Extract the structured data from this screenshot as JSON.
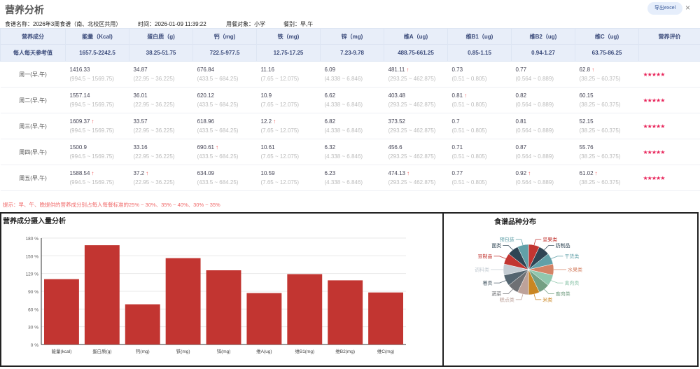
{
  "header": {
    "title": "营养分析",
    "export_label": "导出excel",
    "close_icon": "×"
  },
  "info": {
    "recipe": "食谱名称：2026年3周食谱（南、北校区共用）",
    "time": "时间：2026-01-09 11:39:22",
    "target": "用餐对象：小学",
    "meal": "餐别：早,午"
  },
  "table": {
    "columns": [
      "营养成分",
      "能量（Kcal)",
      "蛋白质（g)",
      "钙（mg)",
      "铁（mg)",
      "锌（mg)",
      "维A（ug)",
      "维B1（ug)",
      "维B2（ug)",
      "维C（ug)",
      "营养评价"
    ],
    "ref_label": "每人每天参考值",
    "ref": [
      "1657.5-2242.5",
      "38.25-51.75",
      "722.5-977.5",
      "12.75-17.25",
      "7.23-9.78",
      "488.75-661.25",
      "0.85-1.15",
      "0.94-1.27",
      "63.75-86.25"
    ],
    "ranges": [
      "(994.5 ~ 1569.75)",
      "(22.95 ~ 36.225)",
      "(433.5 ~ 684.25)",
      "(7.65 ~ 12.075)",
      "(4.338 ~ 6.846)",
      "(293.25 ~ 462.875)",
      "(0.51 ~ 0.805)",
      "(0.564 ~ 0.889)",
      "(38.25 ~ 60.375)"
    ],
    "rows": [
      {
        "day": "周一(早,午)",
        "values": [
          "1416.33",
          "34.87",
          "676.84",
          "11.16",
          "6.09",
          "481.11",
          "0.73",
          "0.77",
          "62.8"
        ],
        "over": [
          false,
          false,
          false,
          false,
          false,
          true,
          false,
          false,
          true
        ],
        "rating": "★★★★★"
      },
      {
        "day": "周二(早,午)",
        "values": [
          "1557.14",
          "36.01",
          "620.12",
          "10.9",
          "6.62",
          "403.48",
          "0.81",
          "0.82",
          "60.15"
        ],
        "over": [
          false,
          false,
          false,
          false,
          false,
          false,
          true,
          false,
          false
        ],
        "rating": "★★★★★"
      },
      {
        "day": "周三(早,午)",
        "values": [
          "1609.37",
          "33.57",
          "618.96",
          "12.2",
          "6.82",
          "373.52",
          "0.7",
          "0.81",
          "52.15"
        ],
        "over": [
          true,
          false,
          false,
          true,
          false,
          false,
          false,
          false,
          false
        ],
        "rating": "★★★★★"
      },
      {
        "day": "周四(早,午)",
        "values": [
          "1500.9",
          "33.16",
          "690.61",
          "10.61",
          "6.32",
          "456.6",
          "0.71",
          "0.87",
          "55.76"
        ],
        "over": [
          false,
          false,
          true,
          false,
          false,
          false,
          false,
          false,
          false
        ],
        "rating": "★★★★★"
      },
      {
        "day": "周五(早,午)",
        "values": [
          "1588.54",
          "37.2",
          "634.09",
          "10.59",
          "6.23",
          "474.13",
          "0.77",
          "0.92",
          "61.02"
        ],
        "over": [
          true,
          true,
          false,
          false,
          false,
          true,
          false,
          true,
          true
        ],
        "rating": "★★★★★"
      }
    ],
    "up_arrow": "↑"
  },
  "tip": "提示：早、午、晚提供的营养成分别占每人每餐标准的25% ~ 30%、35% ~ 40%、30% ~ 35%",
  "chart_data": [
    {
      "type": "bar",
      "title": "营养成分摄入量分析",
      "categories": [
        "能量(kcal)",
        "蛋白质(g)",
        "钙(mg)",
        "铁(mg)",
        "锌(mg)",
        "维A(ug)",
        "维B1(mg)",
        "维B2(mg)",
        "维C(mg)"
      ],
      "values": [
        110.5,
        168,
        68,
        146,
        125.5,
        87,
        119,
        108.5,
        88
      ],
      "ylim": [
        0,
        180
      ],
      "yticks": [
        "0 %",
        "30 %",
        "60 %",
        "90 %",
        "120 %",
        "150 %",
        "180 %"
      ],
      "color": "#c23531"
    },
    {
      "type": "pie",
      "title": "食谱品种分布",
      "labels": [
        "坚果类",
        "奶制品",
        "干货类",
        "水果类",
        "禽肉类",
        "畜肉类",
        "米类",
        "糕点类",
        "蔬菜",
        "薯类",
        "调料类",
        "豆制品",
        "面类",
        "预包装"
      ],
      "values": [
        1,
        1,
        1,
        1,
        1,
        1,
        1,
        1,
        1,
        1,
        1,
        1,
        1,
        1
      ],
      "colors": [
        "#c23531",
        "#2f4554",
        "#61a0a8",
        "#d48265",
        "#91c7ae",
        "#749f83",
        "#ca8622",
        "#bda29a",
        "#6e7074",
        "#546570",
        "#c4ccd3",
        "#c23531",
        "#2f4554",
        "#61a0a8"
      ]
    }
  ]
}
